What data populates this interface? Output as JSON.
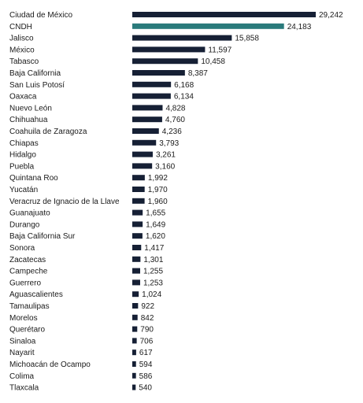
{
  "chart_data": {
    "type": "bar",
    "orientation": "horizontal",
    "title": "",
    "xlabel": "",
    "ylabel": "",
    "grid": false,
    "legend": "none",
    "xlim": [
      0,
      29242
    ],
    "colors": {
      "default": "#162035",
      "highlight": "#2a7a7b"
    },
    "highlight_category": "CNDH",
    "categories": [
      "Ciudad de México",
      "CNDH",
      "Jalisco",
      "México",
      "Tabasco",
      "Baja California",
      "San Luis Potosí",
      "Oaxaca",
      "Nuevo León",
      "Chihuahua",
      "Coahuila de Zaragoza",
      "Chiapas",
      "Hidalgo",
      "Puebla",
      "Quintana Roo",
      "Yucatán",
      "Veracruz de Ignacio de la Llave",
      "Guanajuato",
      "Durango",
      "Baja California Sur",
      "Sonora",
      "Zacatecas",
      "Campeche",
      "Guerrero",
      "Aguascalientes",
      "Tamaulipas",
      "Morelos",
      "Querétaro",
      "Sinaloa",
      "Nayarit",
      "Michoacán de Ocampo",
      "Colima",
      "Tlaxcala"
    ],
    "values": [
      29242,
      24183,
      15858,
      11597,
      10458,
      8387,
      6168,
      6134,
      4828,
      4760,
      4236,
      3793,
      3261,
      3160,
      1992,
      1970,
      1960,
      1655,
      1649,
      1620,
      1417,
      1301,
      1255,
      1253,
      1024,
      922,
      842,
      790,
      706,
      617,
      594,
      586,
      540
    ],
    "value_labels": [
      "29,242",
      "24,183",
      "15,858",
      "11,597",
      "10,458",
      "8,387",
      "6,168",
      "6,134",
      "4,828",
      "4,760",
      "4,236",
      "3,793",
      "3,261",
      "3,160",
      "1,992",
      "1,970",
      "1,960",
      "1,655",
      "1,649",
      "1,620",
      "1,417",
      "1,301",
      "1,255",
      "1,253",
      "1,024",
      "922",
      "842",
      "790",
      "706",
      "617",
      "594",
      "586",
      "540"
    ]
  }
}
